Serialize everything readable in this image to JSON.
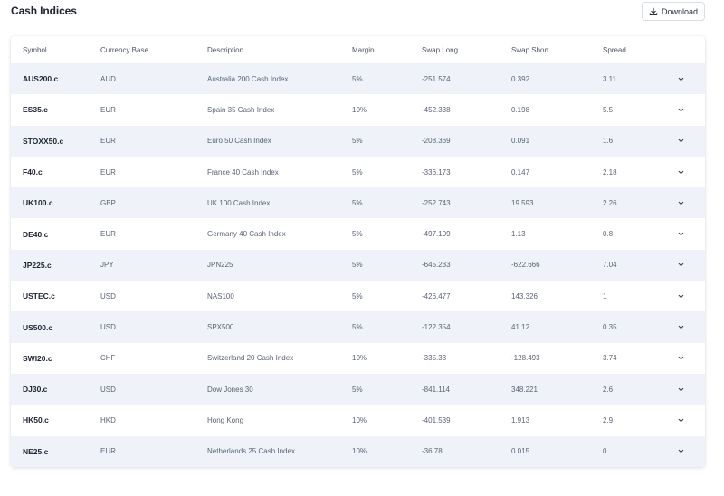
{
  "page": {
    "title": "Cash Indices"
  },
  "toolbar": {
    "download_label": "Download"
  },
  "table": {
    "columns": [
      "Symbol",
      "Currency Base",
      "Description",
      "Margin",
      "Swap Long",
      "Swap Short",
      "Spread"
    ],
    "rows": [
      {
        "symbol": "AUS200.c",
        "currency": "AUD",
        "description": "Australia 200 Cash Index",
        "margin": "5%",
        "swap_long": "-251.574",
        "swap_short": "0.392",
        "spread": "3.11"
      },
      {
        "symbol": "ES35.c",
        "currency": "EUR",
        "description": "Spain 35 Cash Index",
        "margin": "10%",
        "swap_long": "-452.338",
        "swap_short": "0.198",
        "spread": "5.5"
      },
      {
        "symbol": "STOXX50.c",
        "currency": "EUR",
        "description": "Euro 50 Cash Index",
        "margin": "5%",
        "swap_long": "-208.369",
        "swap_short": "0.091",
        "spread": "1.6"
      },
      {
        "symbol": "F40.c",
        "currency": "EUR",
        "description": "France 40 Cash Index",
        "margin": "5%",
        "swap_long": "-336.173",
        "swap_short": "0.147",
        "spread": "2.18"
      },
      {
        "symbol": "UK100.c",
        "currency": "GBP",
        "description": "UK 100 Cash Index",
        "margin": "5%",
        "swap_long": "-252.743",
        "swap_short": "19.593",
        "spread": "2.26"
      },
      {
        "symbol": "DE40.c",
        "currency": "EUR",
        "description": "Germany 40 Cash Index",
        "margin": "5%",
        "swap_long": "-497.109",
        "swap_short": "1.13",
        "spread": "0.8"
      },
      {
        "symbol": "JP225.c",
        "currency": "JPY",
        "description": "JPN225",
        "margin": "5%",
        "swap_long": "-645.233",
        "swap_short": "-622.666",
        "spread": "7.04"
      },
      {
        "symbol": "USTEC.c",
        "currency": "USD",
        "description": "NAS100",
        "margin": "5%",
        "swap_long": "-426.477",
        "swap_short": "143.326",
        "spread": "1"
      },
      {
        "symbol": "US500.c",
        "currency": "USD",
        "description": "SPX500",
        "margin": "5%",
        "swap_long": "-122.354",
        "swap_short": "41.12",
        "spread": "0.35"
      },
      {
        "symbol": "SWI20.c",
        "currency": "CHF",
        "description": "Switzerland 20 Cash Index",
        "margin": "10%",
        "swap_long": "-335.33",
        "swap_short": "-128.493",
        "spread": "3.74"
      },
      {
        "symbol": "DJ30.c",
        "currency": "USD",
        "description": "Dow Jones 30",
        "margin": "5%",
        "swap_long": "-841.114",
        "swap_short": "348.221",
        "spread": "2.6"
      },
      {
        "symbol": "HK50.c",
        "currency": "HKD",
        "description": "Hong Kong",
        "margin": "10%",
        "swap_long": "-401.539",
        "swap_short": "1.913",
        "spread": "2.9"
      },
      {
        "symbol": "NE25.c",
        "currency": "EUR",
        "description": "Netherlands 25 Cash Index",
        "margin": "10%",
        "swap_long": "-36.78",
        "swap_short": "0.015",
        "spread": "0"
      }
    ]
  },
  "icons": {
    "download": "download-icon",
    "row_expand": "chevron-down-icon"
  },
  "colors": {
    "row_shade": "#eff3f9",
    "text_primary": "#1c2230",
    "text_muted": "#5a6273"
  }
}
